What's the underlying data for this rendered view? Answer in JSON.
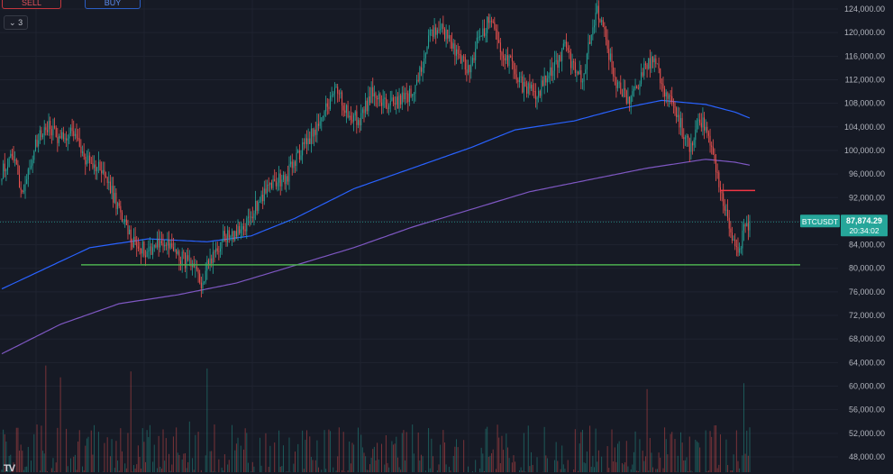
{
  "toolbar": {
    "sell_label": "SELL",
    "buy_label": "BUY",
    "indicator_count": "3"
  },
  "price_label": {
    "symbol": "BTCUSDT",
    "price": "87,874.29",
    "countdown": "20:34:02",
    "color": "#26a69a"
  },
  "colors": {
    "background": "#161a25",
    "grid": "#1f2330",
    "up": "#26a69a",
    "down": "#ef5350",
    "ma_blue": "#2962ff",
    "ma_purple": "#7e57c2",
    "support": "#4caf50",
    "resistance_mark": "#f23645",
    "axis_text": "#b2b5be"
  },
  "chart_data": {
    "type": "candlestick",
    "title": "",
    "symbol": "BTCUSDT",
    "ylim": [
      45000,
      126000
    ],
    "y_ticks": [
      "124,000.00",
      "120,000.00",
      "116,000.00",
      "112,000.00",
      "108,000.00",
      "104,000.00",
      "100,000.00",
      "96,000.00",
      "92,000.00",
      "88,000.00",
      "84,000.00",
      "80,000.00",
      "76,000.00",
      "72,000.00",
      "68,000.00",
      "64,000.00",
      "60,000.00",
      "56,000.00",
      "52,000.00",
      "48,000.00"
    ],
    "grid": true,
    "last_price": 87874.29,
    "support_level": 80600,
    "resistance_mark_level": 93200,
    "anchors": [
      [
        0,
        96500
      ],
      [
        8,
        99000
      ],
      [
        14,
        93000
      ],
      [
        22,
        100000
      ],
      [
        30,
        104500
      ],
      [
        38,
        102500
      ],
      [
        48,
        103000
      ],
      [
        58,
        98000
      ],
      [
        68,
        97000
      ],
      [
        78,
        91000
      ],
      [
        88,
        85000
      ],
      [
        98,
        83000
      ],
      [
        108,
        84500
      ],
      [
        118,
        83000
      ],
      [
        128,
        80500
      ],
      [
        136,
        77500
      ],
      [
        142,
        81500
      ],
      [
        152,
        85500
      ],
      [
        164,
        86000
      ],
      [
        174,
        91000
      ],
      [
        182,
        94000
      ],
      [
        194,
        95500
      ],
      [
        206,
        101000
      ],
      [
        216,
        104000
      ],
      [
        222,
        107500
      ],
      [
        228,
        110000
      ],
      [
        236,
        106500
      ],
      [
        244,
        105000
      ],
      [
        252,
        109500
      ],
      [
        262,
        107500
      ],
      [
        272,
        108500
      ],
      [
        280,
        110000
      ],
      [
        286,
        113500
      ],
      [
        292,
        119500
      ],
      [
        300,
        120500
      ],
      [
        310,
        117000
      ],
      [
        318,
        113500
      ],
      [
        326,
        119500
      ],
      [
        334,
        122500
      ],
      [
        340,
        117500
      ],
      [
        348,
        114000
      ],
      [
        356,
        110500
      ],
      [
        364,
        109500
      ],
      [
        374,
        113000
      ],
      [
        384,
        117500
      ],
      [
        390,
        114000
      ],
      [
        396,
        112000
      ],
      [
        402,
        120500
      ],
      [
        406,
        123500
      ],
      [
        410,
        121000
      ],
      [
        418,
        112000
      ],
      [
        426,
        108500
      ],
      [
        432,
        110000
      ],
      [
        438,
        114000
      ],
      [
        446,
        115000
      ],
      [
        452,
        110000
      ],
      [
        458,
        108500
      ],
      [
        464,
        103500
      ],
      [
        470,
        100000
      ],
      [
        474,
        105500
      ],
      [
        480,
        104500
      ],
      [
        486,
        97500
      ],
      [
        492,
        91000
      ],
      [
        498,
        85500
      ],
      [
        502,
        82500
      ],
      [
        506,
        86500
      ],
      [
        510,
        87874.29
      ]
    ],
    "num_candles": 511,
    "ma_long_blue": [
      [
        0,
        76500
      ],
      [
        30,
        80000
      ],
      [
        60,
        83500
      ],
      [
        100,
        85000
      ],
      [
        140,
        84500
      ],
      [
        170,
        85500
      ],
      [
        200,
        88500
      ],
      [
        240,
        93500
      ],
      [
        280,
        97000
      ],
      [
        320,
        100500
      ],
      [
        350,
        103500
      ],
      [
        390,
        105000
      ],
      [
        420,
        107000
      ],
      [
        450,
        108500
      ],
      [
        480,
        107800
      ],
      [
        500,
        106500
      ],
      [
        510,
        105500
      ]
    ],
    "ma_long_purple": [
      [
        0,
        65500
      ],
      [
        40,
        70500
      ],
      [
        80,
        74000
      ],
      [
        120,
        75500
      ],
      [
        160,
        77500
      ],
      [
        200,
        80500
      ],
      [
        240,
        83500
      ],
      [
        280,
        87000
      ],
      [
        320,
        90000
      ],
      [
        360,
        93000
      ],
      [
        400,
        95000
      ],
      [
        440,
        97000
      ],
      [
        480,
        98500
      ],
      [
        500,
        98000
      ],
      [
        510,
        97500
      ]
    ],
    "volume": {
      "baseline_price": 45000,
      "max_height_price": 64500,
      "spikes": [
        [
          30,
          63500
        ],
        [
          40,
          61500
        ],
        [
          88,
          62500
        ],
        [
          128,
          54000
        ],
        [
          140,
          63000
        ],
        [
          145,
          53500
        ],
        [
          180,
          52000
        ],
        [
          230,
          53000
        ],
        [
          310,
          51000
        ],
        [
          440,
          59500
        ],
        [
          480,
          52500
        ],
        [
          506,
          60500
        ]
      ]
    }
  }
}
